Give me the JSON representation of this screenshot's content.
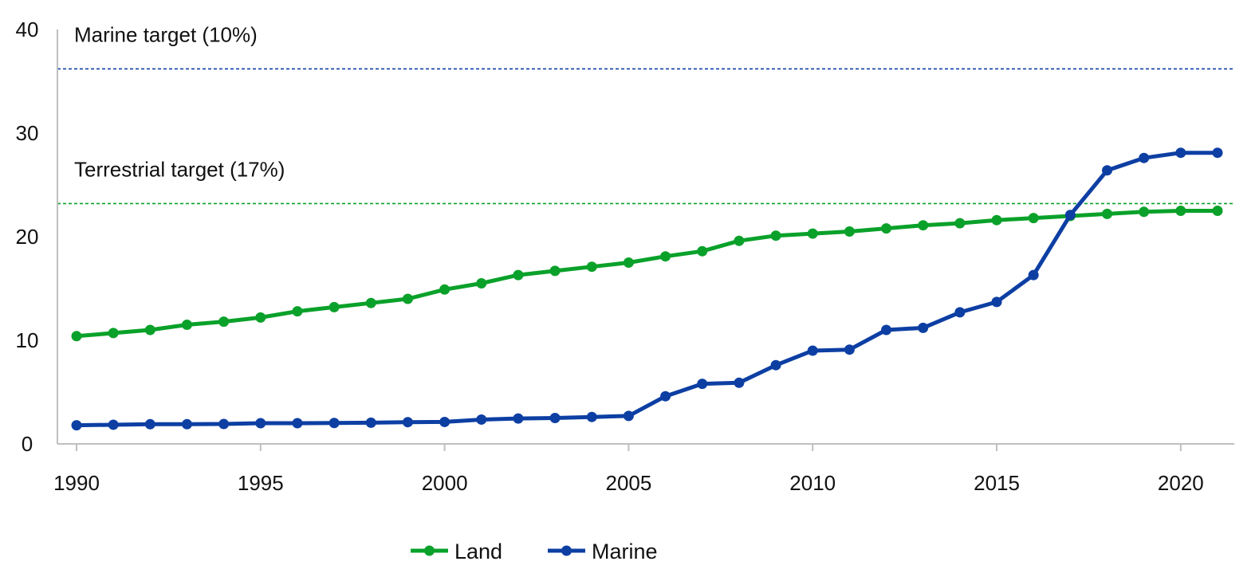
{
  "chart_data": {
    "type": "line",
    "title": "",
    "xlabel": "",
    "ylabel": "",
    "x": [
      1990,
      1991,
      1992,
      1993,
      1994,
      1995,
      1996,
      1997,
      1998,
      1999,
      2000,
      2001,
      2002,
      2003,
      2004,
      2005,
      2006,
      2007,
      2008,
      2009,
      2010,
      2011,
      2012,
      2013,
      2014,
      2015,
      2016,
      2017,
      2018,
      2019,
      2020,
      2021
    ],
    "xlim": [
      1990,
      2021
    ],
    "ylim": [
      0,
      40
    ],
    "x_ticks": [
      "1990",
      "1995",
      "2000",
      "2005",
      "2010",
      "2015",
      "2020"
    ],
    "y_ticks": [
      "0",
      "10",
      "20",
      "30",
      "40"
    ],
    "grid": false,
    "legend_position": "bottom",
    "series": [
      {
        "name": "Land",
        "color": "#0aa12a",
        "values": [
          10.4,
          10.7,
          11.0,
          11.5,
          11.8,
          12.2,
          12.8,
          13.2,
          13.6,
          14.0,
          14.9,
          15.5,
          16.3,
          16.7,
          17.1,
          17.5,
          18.1,
          18.6,
          19.6,
          20.1,
          20.3,
          20.5,
          20.8,
          21.1,
          21.3,
          21.6,
          21.8,
          22.0,
          22.2,
          22.4,
          22.5,
          22.5
        ]
      },
      {
        "name": "Marine",
        "color": "#0d3fa3",
        "values": [
          1.8,
          1.85,
          1.9,
          1.9,
          1.92,
          2.0,
          2.0,
          2.02,
          2.05,
          2.1,
          2.12,
          2.35,
          2.45,
          2.5,
          2.6,
          2.7,
          4.6,
          5.8,
          5.9,
          7.6,
          9.0,
          9.1,
          11.0,
          11.2,
          12.7,
          13.7,
          16.3,
          22.1,
          26.4,
          27.6,
          28.1,
          28.1
        ]
      }
    ],
    "reference_lines": [
      {
        "label": "Marine target (10%)",
        "value": 36.2,
        "color": "#0d3fa3"
      },
      {
        "label": "Terrestrial target (17%)",
        "value": 23.2,
        "color": "#0aa12a"
      }
    ]
  }
}
